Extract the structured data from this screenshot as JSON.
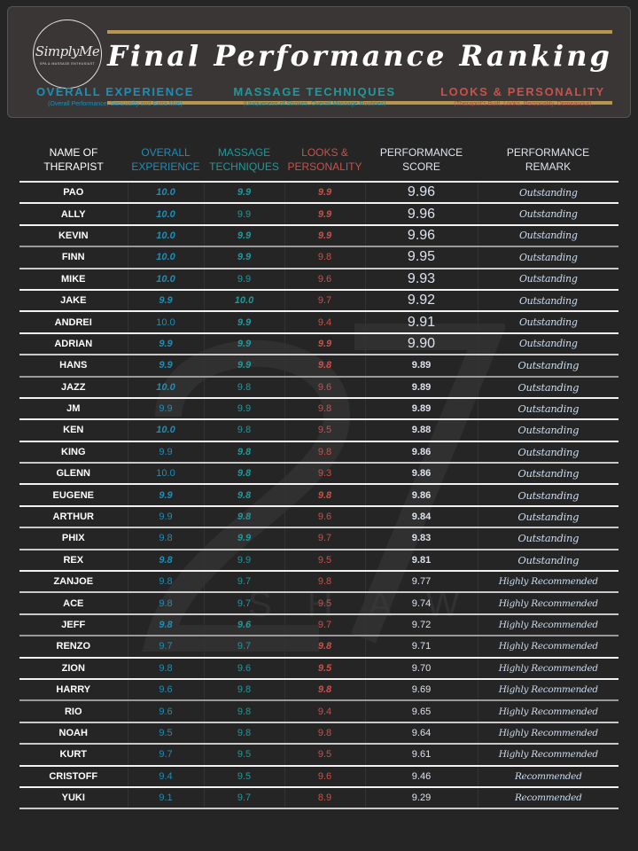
{
  "header": {
    "logo": {
      "name": "SimplyMe",
      "tagline": "SPA & MASSAGE ENTHUSIAST"
    },
    "title": "Final Performance Ranking",
    "criteria": [
      {
        "title": "OVERALL EXPERIENCE",
        "subtitle": "(Overall Performance, Sensuality and Extra Mile)",
        "color": "#1b8fb8"
      },
      {
        "title": "MASSAGE TECHNIQUES",
        "subtitle": "(Uniqueness of Strokes, Overall Massage Routines)",
        "color": "#1d9a9c"
      },
      {
        "title": "LOOKS & PERSONALITY",
        "subtitle": "(Therapist's Built, Looks, Personality, Demeanour)",
        "color": "#c6524a"
      }
    ]
  },
  "colors": {
    "background": "#252525",
    "banner": "#3a3636",
    "gold": "#b99650",
    "overall_experience": "#1b8fb8",
    "massage_techniques": "#1d9a9c",
    "looks_personality": "#c6524a",
    "remark": "#c9dcef"
  },
  "watermark": {
    "number": "27",
    "text": "SHAW"
  },
  "table": {
    "columns": {
      "name": [
        "NAME OF",
        "THERAPIST"
      ],
      "overall": [
        "OVERALL",
        "EXPERIENCE"
      ],
      "massage": [
        "MASSAGE",
        "TECHNIQUES"
      ],
      "looks": [
        "LOOKS &",
        "PERSONALITY"
      ],
      "score": [
        "PERFORMANCE",
        "SCORE"
      ],
      "remark": [
        "PERFORMANCE",
        "REMARK"
      ]
    }
  },
  "chart_data": {
    "type": "table",
    "title": "Final Performance Ranking",
    "columns": [
      "Name of Therapist",
      "Overall Experience",
      "Massage Techniques",
      "Looks & Personality",
      "Performance Score",
      "Performance Remark"
    ],
    "rows": [
      {
        "name": "PAO",
        "overall": "10.0",
        "massage": "9.9",
        "looks": "9.9",
        "score": "9.96",
        "remark": "Outstanding",
        "hl": [
          true,
          true,
          true
        ]
      },
      {
        "name": "ALLY",
        "overall": "10.0",
        "massage": "9.9",
        "looks": "9.9",
        "score": "9.96",
        "remark": "Outstanding",
        "hl": [
          true,
          false,
          true
        ]
      },
      {
        "name": "KEVIN",
        "overall": "10.0",
        "massage": "9.9",
        "looks": "9.9",
        "score": "9.96",
        "remark": "Outstanding",
        "hl": [
          true,
          true,
          true
        ]
      },
      {
        "name": "FINN",
        "overall": "10.0",
        "massage": "9.9",
        "looks": "9.8",
        "score": "9.95",
        "remark": "Outstanding",
        "hl": [
          true,
          true,
          false
        ]
      },
      {
        "name": "MIKE",
        "overall": "10.0",
        "massage": "9.9",
        "looks": "9.6",
        "score": "9.93",
        "remark": "Outstanding",
        "hl": [
          true,
          false,
          false
        ]
      },
      {
        "name": "JAKE",
        "overall": "9.9",
        "massage": "10.0",
        "looks": "9.7",
        "score": "9.92",
        "remark": "Outstanding",
        "hl": [
          true,
          true,
          false
        ]
      },
      {
        "name": "ANDREI",
        "overall": "10.0",
        "massage": "9.9",
        "looks": "9.4",
        "score": "9.91",
        "remark": "Outstanding",
        "hl": [
          false,
          true,
          false
        ]
      },
      {
        "name": "ADRIAN",
        "overall": "9.9",
        "massage": "9.9",
        "looks": "9.9",
        "score": "9.90",
        "remark": "Outstanding",
        "hl": [
          true,
          true,
          true
        ]
      },
      {
        "name": "HANS",
        "overall": "9.9",
        "massage": "9.9",
        "looks": "9.8",
        "score": "9.89",
        "remark": "Outstanding",
        "hl": [
          true,
          true,
          true
        ]
      },
      {
        "name": "JAZZ",
        "overall": "10.0",
        "massage": "9.8",
        "looks": "9.6",
        "score": "9.89",
        "remark": "Outstanding",
        "hl": [
          true,
          false,
          false
        ]
      },
      {
        "name": "JM",
        "overall": "9.9",
        "massage": "9.9",
        "looks": "9.8",
        "score": "9.89",
        "remark": "Outstanding",
        "hl": [
          false,
          false,
          false
        ]
      },
      {
        "name": "KEN",
        "overall": "10.0",
        "massage": "9.8",
        "looks": "9.5",
        "score": "9.88",
        "remark": "Outstanding",
        "hl": [
          true,
          false,
          false
        ]
      },
      {
        "name": "KING",
        "overall": "9.9",
        "massage": "9.8",
        "looks": "9.8",
        "score": "9.86",
        "remark": "Outstanding",
        "hl": [
          false,
          true,
          false
        ]
      },
      {
        "name": "GLENN",
        "overall": "10.0",
        "massage": "9.8",
        "looks": "9.3",
        "score": "9.86",
        "remark": "Outstanding",
        "hl": [
          false,
          true,
          false
        ]
      },
      {
        "name": "EUGENE",
        "overall": "9.9",
        "massage": "9.8",
        "looks": "9.8",
        "score": "9.86",
        "remark": "Outstanding",
        "hl": [
          true,
          true,
          true
        ]
      },
      {
        "name": "ARTHUR",
        "overall": "9.9",
        "massage": "9.8",
        "looks": "9.6",
        "score": "9.84",
        "remark": "Outstanding",
        "hl": [
          false,
          true,
          false
        ]
      },
      {
        "name": "PHIX",
        "overall": "9.8",
        "massage": "9.9",
        "looks": "9.7",
        "score": "9.83",
        "remark": "Outstanding",
        "hl": [
          false,
          true,
          false
        ]
      },
      {
        "name": "REX",
        "overall": "9.8",
        "massage": "9.9",
        "looks": "9.5",
        "score": "9.81",
        "remark": "Outstanding",
        "hl": [
          true,
          false,
          false
        ]
      },
      {
        "name": "ZANJOE",
        "overall": "9.8",
        "massage": "9.7",
        "looks": "9.8",
        "score": "9.77",
        "remark": "Highly Recommended",
        "hl": [
          false,
          false,
          false
        ]
      },
      {
        "name": "ACE",
        "overall": "9.8",
        "massage": "9.7",
        "looks": "9.5",
        "score": "9.74",
        "remark": "Highly Recommended",
        "hl": [
          false,
          false,
          false
        ]
      },
      {
        "name": "JEFF",
        "overall": "9.8",
        "massage": "9.6",
        "looks": "9.7",
        "score": "9.72",
        "remark": "Highly Recommended",
        "hl": [
          true,
          true,
          false
        ]
      },
      {
        "name": "RENZO",
        "overall": "9.7",
        "massage": "9.7",
        "looks": "9.8",
        "score": "9.71",
        "remark": "Highly Recommended",
        "hl": [
          false,
          false,
          true
        ]
      },
      {
        "name": "ZION",
        "overall": "9.8",
        "massage": "9.6",
        "looks": "9.5",
        "score": "9.70",
        "remark": "Highly Recommended",
        "hl": [
          false,
          false,
          true
        ]
      },
      {
        "name": "HARRY",
        "overall": "9.6",
        "massage": "9.8",
        "looks": "9.8",
        "score": "9.69",
        "remark": "Highly Recommended",
        "hl": [
          false,
          false,
          true
        ]
      },
      {
        "name": "RIO",
        "overall": "9.6",
        "massage": "9.8",
        "looks": "9.4",
        "score": "9.65",
        "remark": "Highly Recommended",
        "hl": [
          false,
          false,
          false
        ]
      },
      {
        "name": "NOAH",
        "overall": "9.5",
        "massage": "9.8",
        "looks": "9.8",
        "score": "9.64",
        "remark": "Highly Recommended",
        "hl": [
          false,
          false,
          false
        ]
      },
      {
        "name": "KURT",
        "overall": "9.7",
        "massage": "9.5",
        "looks": "9.5",
        "score": "9.61",
        "remark": "Highly Recommended",
        "hl": [
          false,
          false,
          false
        ]
      },
      {
        "name": "CRISTOFF",
        "overall": "9.4",
        "massage": "9.5",
        "looks": "9.6",
        "score": "9.46",
        "remark": "Recommended",
        "hl": [
          false,
          false,
          false
        ]
      },
      {
        "name": "YUKI",
        "overall": "9.1",
        "massage": "9.7",
        "looks": "8.9",
        "score": "9.29",
        "remark": "Recommended",
        "hl": [
          false,
          false,
          false
        ]
      }
    ]
  }
}
